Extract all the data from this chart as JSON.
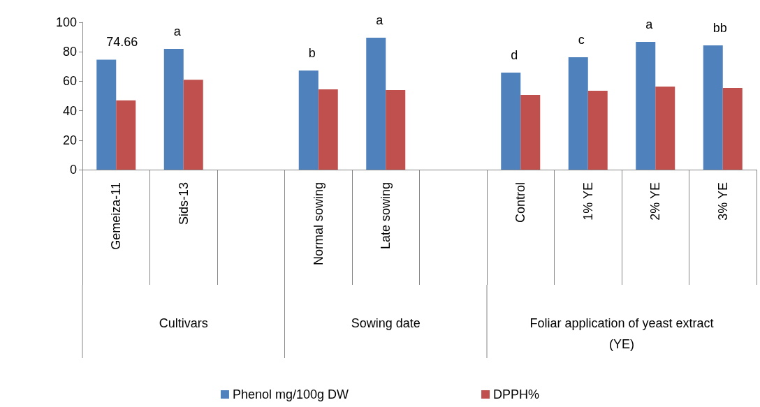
{
  "chart_data": {
    "type": "bar",
    "categories": [
      "Gemeiza-11",
      "Sids-13",
      null,
      "Normal sowing",
      "Late sowing",
      null,
      "Control",
      "1% YE",
      "2% YE",
      "3% YE"
    ],
    "series": [
      {
        "name": "Phenol mg/100g DW",
        "color": "#4f81bd",
        "values": [
          74.66,
          82,
          null,
          67.3,
          89.6,
          null,
          65.9,
          76.3,
          86.7,
          84.4
        ]
      },
      {
        "name": "DPPH%",
        "color": "#c0504d",
        "values": [
          47,
          61,
          null,
          54.5,
          54,
          null,
          50.7,
          53.6,
          56.4,
          55.5
        ]
      }
    ],
    "ylim": [
      0,
      100
    ],
    "yticks": [
      0,
      20,
      40,
      60,
      80,
      100
    ],
    "grid": false,
    "legend": "bottom",
    "annotations": [
      {
        "text": "74.66",
        "x": "Gemeiza-11",
        "y": 74.66
      },
      {
        "text": "a",
        "x": "Sids-13",
        "y": 82
      },
      {
        "text": "b",
        "x": "Normal sowing",
        "y": 67.3
      },
      {
        "text": "a",
        "x": "Late sowing",
        "y": 89.6
      },
      {
        "text": "d",
        "x": "Control",
        "y": 65.9
      },
      {
        "text": "c",
        "x": "1% YE",
        "y": 76.3
      },
      {
        "text": "a",
        "x": "2% YE",
        "y": 86.7
      },
      {
        "text": "bb",
        "x": "3% YE",
        "y": 84.4
      },
      "Cultivars",
      "Sowing date",
      "Foliar application of yeast extract\n(YE)"
    ]
  }
}
